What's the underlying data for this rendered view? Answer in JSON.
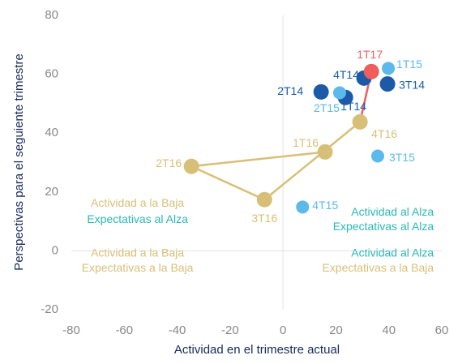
{
  "chart_data": {
    "type": "scatter",
    "xlabel": "Actividad en el trimestre actual",
    "ylabel": "Perspectivas para el seguiente trimestre",
    "xlim": [
      -80,
      60
    ],
    "xticks": [
      -80,
      -60,
      -40,
      -20,
      0,
      20,
      40,
      60
    ],
    "ylim": [
      -20,
      80
    ],
    "yticks": [
      -20,
      0,
      20,
      40,
      60,
      80
    ],
    "zero_lines": true,
    "series": [
      {
        "color": "#1c5aa8",
        "line": false,
        "points": [
          {
            "label": "2T14",
            "x": 14.4,
            "y": 54.0
          },
          {
            "label": "1T14",
            "x": 23.6,
            "y": 52.1
          },
          {
            "label": "4T14",
            "x": 30.6,
            "y": 58.7
          },
          {
            "label": "3T14",
            "x": 39.5,
            "y": 56.7
          }
        ]
      },
      {
        "color": "#5cb9ec",
        "line": false,
        "points": [
          {
            "label": "2T15",
            "x": 21.4,
            "y": 53.7
          },
          {
            "label": "1T15",
            "x": 39.8,
            "y": 62.0
          },
          {
            "label": "3T15",
            "x": 35.8,
            "y": 32.2
          },
          {
            "label": "4T15",
            "x": 7.4,
            "y": 14.9
          }
        ]
      },
      {
        "color": "#d8bf78",
        "line": true,
        "points": [
          {
            "label": "1T16",
            "x": 15.9,
            "y": 33.6
          },
          {
            "label": "2T16",
            "x": -34.6,
            "y": 28.7
          },
          {
            "label": "3T16",
            "x": -7.0,
            "y": 17.4
          },
          {
            "label": "4T16",
            "x": 29.1,
            "y": 43.8
          }
        ]
      },
      {
        "color": "#ef5d5d",
        "line": true,
        "points": [
          {
            "label": "1T17",
            "x": 33.4,
            "y": 60.9
          }
        ]
      }
    ],
    "annotations": [
      {
        "text": "Actividad a la Baja",
        "color": "#d8bf78"
      },
      {
        "text": "Expectativas al Alza",
        "color": "#2bb7b7"
      },
      {
        "text": "Actividad a la Baja",
        "color": "#d8bf78"
      },
      {
        "text": "Expectativas a la Baja",
        "color": "#d8bf78"
      },
      {
        "text": "Actividad al Alza",
        "color": "#2bb7b7"
      },
      {
        "text": "Expectativas al Alza",
        "color": "#2bb7b7"
      },
      {
        "text": "Actividad al Alza",
        "color": "#2bb7b7"
      },
      {
        "text": "Expectativas a la Baja",
        "color": "#d8bf78"
      }
    ]
  }
}
